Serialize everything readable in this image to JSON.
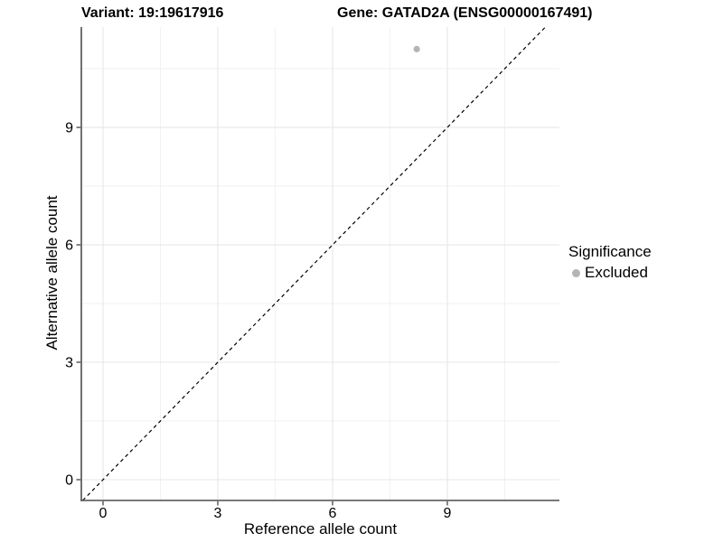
{
  "chart_data": {
    "type": "scatter",
    "titles": {
      "left": "Variant: 19:19617916",
      "right": "Gene: GATAD2A (ENSG00000167491)"
    },
    "xlabel": "Reference allele count",
    "ylabel": "Alternative allele count",
    "x_ticks": [
      0,
      3,
      6,
      9
    ],
    "y_ticks": [
      0,
      3,
      6,
      9
    ],
    "x_minor_ticks": [
      1.5,
      4.5,
      7.5,
      10.5
    ],
    "y_minor_ticks": [
      1.5,
      4.5,
      7.5,
      10.5
    ],
    "xlim": [
      -0.6,
      11.9
    ],
    "ylim": [
      -0.55,
      11.6
    ],
    "grid": {
      "major_color": "#e7e7e7",
      "minor_color": "#f2f2f2"
    },
    "identity_line": {
      "type": "y=x",
      "style": "dashed",
      "color": "#000000"
    },
    "series": [
      {
        "name": "Excluded",
        "color": "#b5b5b5",
        "points": [
          {
            "x": 8.2,
            "y": 11.0
          }
        ]
      }
    ],
    "legend": {
      "title": "Significance",
      "position": "right",
      "items": [
        {
          "label": "Excluded",
          "color": "#b5b5b5",
          "marker": "circle"
        }
      ]
    },
    "axis_line_color": "#4d4d4d",
    "tick_color": "#333333"
  }
}
